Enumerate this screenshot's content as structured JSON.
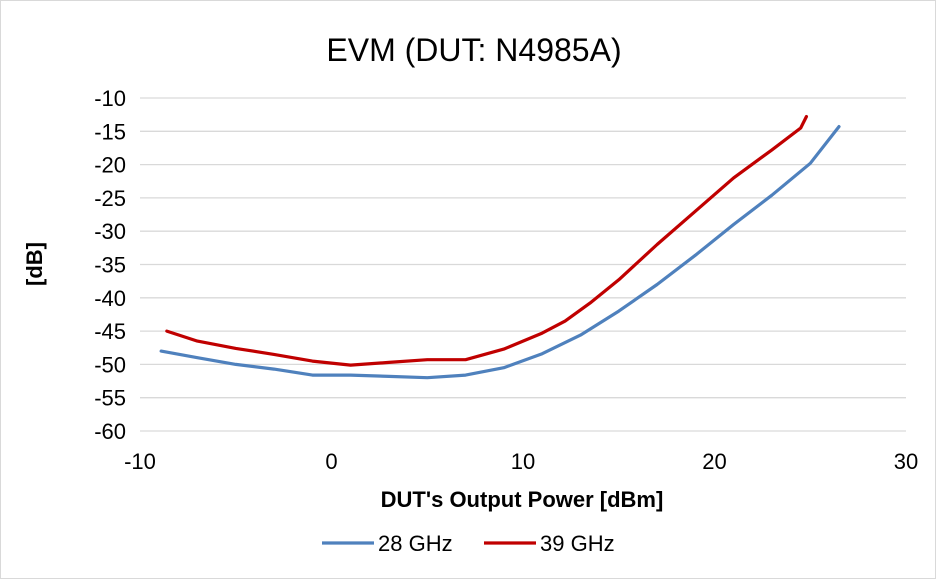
{
  "chart_data": {
    "type": "line",
    "title": "EVM (DUT: N4985A)",
    "xlabel": "DUT's Output Power [dBm]",
    "ylabel": "[dB]",
    "xlim": [
      -10,
      30
    ],
    "ylim": [
      -60,
      -10
    ],
    "xticks": [
      -10,
      0,
      10,
      20,
      30
    ],
    "yticks": [
      -10,
      -15,
      -20,
      -25,
      -30,
      -35,
      -40,
      -45,
      -50,
      -55,
      -60
    ],
    "grid": "horizontal",
    "legend_position": "bottom",
    "series": [
      {
        "name": "28 GHz",
        "color": "#4f81bd",
        "points": [
          [
            -8.9,
            -48.0
          ],
          [
            -7,
            -49.0
          ],
          [
            -5,
            -50.0
          ],
          [
            -3,
            -50.7
          ],
          [
            -1,
            -51.6
          ],
          [
            1,
            -51.6
          ],
          [
            3,
            -51.8
          ],
          [
            5,
            -52.0
          ],
          [
            7,
            -51.6
          ],
          [
            9,
            -50.5
          ],
          [
            11,
            -48.4
          ],
          [
            13,
            -45.6
          ],
          [
            15,
            -42.0
          ],
          [
            17,
            -38.0
          ],
          [
            19,
            -33.6
          ],
          [
            21,
            -29.0
          ],
          [
            23,
            -24.6
          ],
          [
            25,
            -19.8
          ],
          [
            26.5,
            -14.3
          ]
        ]
      },
      {
        "name": "39 GHz",
        "color": "#c00000",
        "points": [
          [
            -8.6,
            -45.0
          ],
          [
            -7,
            -46.5
          ],
          [
            -5,
            -47.6
          ],
          [
            -3,
            -48.5
          ],
          [
            -1,
            -49.5
          ],
          [
            1,
            -50.1
          ],
          [
            3,
            -49.7
          ],
          [
            5,
            -49.3
          ],
          [
            7,
            -49.3
          ],
          [
            9,
            -47.7
          ],
          [
            11,
            -45.3
          ],
          [
            12.2,
            -43.5
          ],
          [
            13.5,
            -40.8
          ],
          [
            15,
            -37.3
          ],
          [
            17,
            -32.0
          ],
          [
            19,
            -27.0
          ],
          [
            21,
            -22.0
          ],
          [
            23,
            -17.8
          ],
          [
            24.5,
            -14.5
          ],
          [
            24.8,
            -12.8
          ]
        ]
      }
    ]
  }
}
